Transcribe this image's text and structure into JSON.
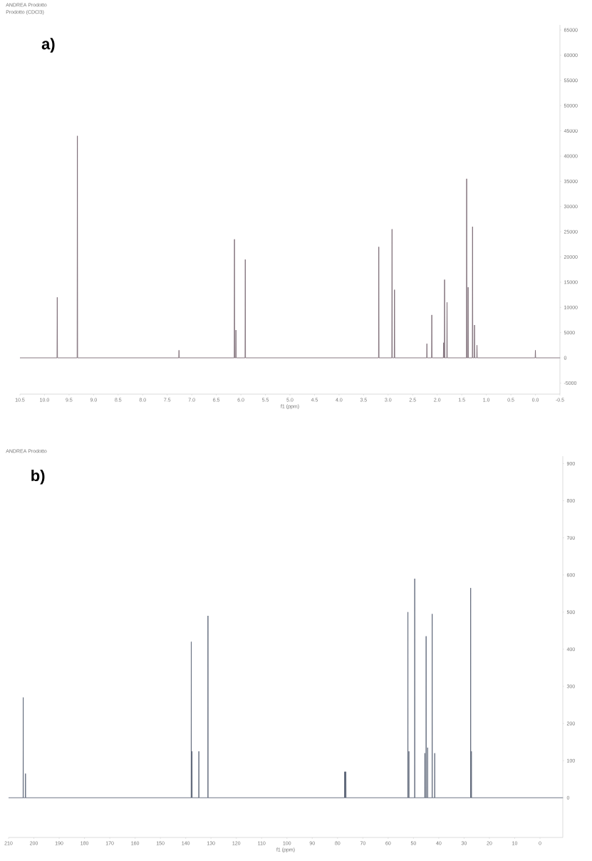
{
  "chart_data": [
    {
      "type": "line",
      "title": "a)",
      "xlabel": "f1 (ppm)",
      "annotations": [
        "ANDREA Prodotto",
        "Prodotto (CDCl3)"
      ],
      "x": [
        10.5,
        9.745,
        9.74,
        9.735,
        9.335,
        9.33,
        9.325,
        7.265,
        7.26,
        7.255,
        6.135,
        6.13,
        6.125,
        6.105,
        6.1,
        6.095,
        5.915,
        5.91,
        5.905,
        3.195,
        3.19,
        3.185,
        2.925,
        2.92,
        2.915,
        2.875,
        2.87,
        2.865,
        2.215,
        2.21,
        2.205,
        2.115,
        2.11,
        2.105,
        1.875,
        1.87,
        1.865,
        1.855,
        1.85,
        1.845,
        1.805,
        1.8,
        1.795,
        1.405,
        1.4,
        1.395,
        1.375,
        1.37,
        1.365,
        1.285,
        1.28,
        1.275,
        1.245,
        1.24,
        1.235,
        1.195,
        1.19,
        1.185,
        0.005,
        0.0,
        -0.005,
        -0.5
      ],
      "values": [
        0,
        0,
        12000,
        0,
        0,
        44000,
        0,
        0,
        1500,
        0,
        0,
        23500,
        0,
        0,
        5500,
        0,
        0,
        19500,
        0,
        0,
        22000,
        0,
        0,
        25500,
        0,
        0,
        13500,
        0,
        0,
        2800,
        0,
        0,
        8500,
        0,
        0,
        3000,
        0,
        0,
        15500,
        0,
        0,
        11000,
        0,
        0,
        35500,
        0,
        0,
        14000,
        0,
        0,
        26000,
        0,
        0,
        6500,
        0,
        0,
        2500,
        0,
        0,
        1500,
        0,
        0
      ],
      "color": "#7a6a74",
      "xlim": [
        10.5,
        -0.5
      ],
      "ylim": [
        -7200,
        66000
      ],
      "xticks": [
        {
          "value": 10.5,
          "label": "10.5"
        },
        {
          "value": 10,
          "label": "10.0"
        },
        {
          "value": 9.5,
          "label": "9.5"
        },
        {
          "value": 9,
          "label": "9.0"
        },
        {
          "value": 8.5,
          "label": "8.5"
        },
        {
          "value": 8,
          "label": "8.0"
        },
        {
          "value": 7.5,
          "label": "7.5"
        },
        {
          "value": 7,
          "label": "7.0"
        },
        {
          "value": 6.5,
          "label": "6.5"
        },
        {
          "value": 6,
          "label": "6.0"
        },
        {
          "value": 5.5,
          "label": "5.5"
        },
        {
          "value": 5,
          "label": "5.0"
        },
        {
          "value": 4.5,
          "label": "4.5"
        },
        {
          "value": 4,
          "label": "4.0"
        },
        {
          "value": 3.5,
          "label": "3.5"
        },
        {
          "value": 3,
          "label": "3.0"
        },
        {
          "value": 2.5,
          "label": "2.5"
        },
        {
          "value": 2,
          "label": "2.0"
        },
        {
          "value": 1.5,
          "label": "1.5"
        },
        {
          "value": 1,
          "label": "1.0"
        },
        {
          "value": 0.5,
          "label": "0.5"
        },
        {
          "value": 0,
          "label": "0.0"
        },
        {
          "value": -0.5,
          "label": "-0.5"
        }
      ],
      "yticks": [
        -5000,
        0,
        5000,
        10000,
        15000,
        20000,
        25000,
        30000,
        35000,
        40000,
        45000,
        50000,
        55000,
        60000,
        65000
      ]
    },
    {
      "type": "line",
      "title": "b)",
      "xlabel": "f1 (ppm)",
      "annotations": [
        "ANDREA Prodotto"
      ],
      "x": [
        210,
        204.25,
        204.2,
        204.15,
        203.35,
        203.3,
        203.25,
        137.85,
        137.8,
        137.75,
        137.55,
        137.5,
        137.45,
        134.85,
        134.8,
        134.75,
        131.25,
        131.2,
        131.15,
        77.25,
        77.2,
        77.15,
        77.05,
        77.0,
        76.95,
        76.75,
        76.7,
        76.65,
        52.25,
        52.2,
        52.15,
        51.85,
        51.8,
        51.75,
        49.55,
        49.5,
        49.45,
        45.55,
        45.5,
        45.45,
        45.05,
        45.0,
        44.95,
        44.45,
        44.4,
        44.35,
        42.65,
        42.6,
        42.55,
        41.65,
        41.6,
        41.55,
        27.45,
        27.4,
        27.35,
        27.15,
        27.1,
        27.05,
        -9
      ],
      "values": [
        0,
        0,
        270,
        0,
        0,
        65,
        0,
        0,
        420,
        0,
        0,
        125,
        0,
        0,
        125,
        0,
        0,
        490,
        0,
        0,
        70,
        0,
        0,
        70,
        0,
        0,
        70,
        0,
        0,
        500,
        0,
        0,
        125,
        0,
        0,
        590,
        0,
        0,
        120,
        0,
        0,
        435,
        0,
        0,
        135,
        0,
        0,
        495,
        0,
        0,
        120,
        0,
        0,
        565,
        0,
        0,
        125,
        0,
        0
      ],
      "color": "#5e6678",
      "xlim": [
        210,
        -9
      ],
      "ylim": [
        -107,
        920
      ],
      "xticks": [
        210,
        200,
        190,
        180,
        170,
        160,
        150,
        140,
        130,
        120,
        110,
        100,
        90,
        80,
        70,
        60,
        50,
        40,
        30,
        20,
        10,
        0
      ],
      "yticks": [
        0,
        100,
        200,
        300,
        400,
        500,
        600,
        700,
        800,
        900
      ]
    }
  ]
}
